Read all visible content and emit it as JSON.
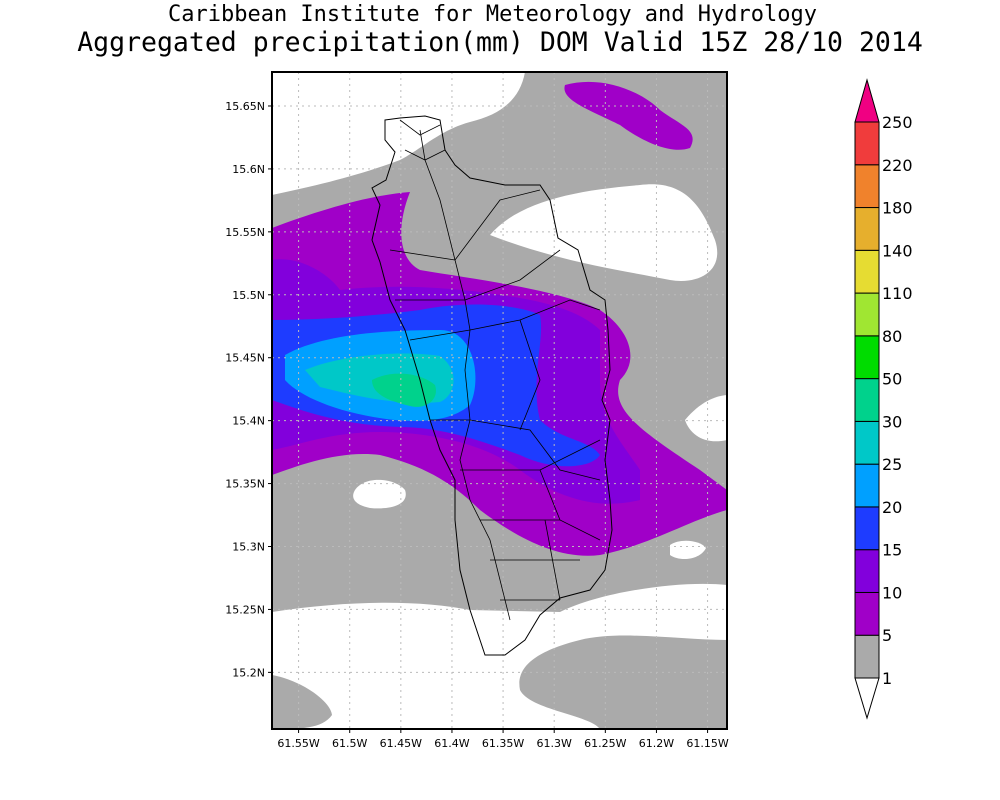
{
  "header": {
    "title": "Caribbean Institute for Meteorology and Hydrology",
    "subtitle": "Aggregated precipitation(mm) DOM Valid 15Z 28/10 2014"
  },
  "map": {
    "region": "Dominica",
    "lat_ticks": [
      "15.65N",
      "15.6N",
      "15.55N",
      "15.5N",
      "15.45N",
      "15.4N",
      "15.35N",
      "15.3N",
      "15.25N",
      "15.2N"
    ],
    "lat_values": [
      15.65,
      15.6,
      15.55,
      15.5,
      15.45,
      15.4,
      15.35,
      15.3,
      15.25,
      15.2
    ],
    "lon_ticks": [
      "61.55W",
      "61.5W",
      "61.45W",
      "61.4W",
      "61.35W",
      "61.3W",
      "61.25W",
      "61.2W",
      "61.15W"
    ],
    "lon_values": [
      -61.55,
      -61.5,
      -61.45,
      -61.4,
      -61.35,
      -61.3,
      -61.25,
      -61.2,
      -61.15
    ],
    "lat_range": [
      15.155,
      15.677
    ],
    "lon_range": [
      -61.576,
      -61.131
    ],
    "colors": {
      "below1": "#ffffff",
      "c1_5": "#aaaaaa",
      "c5_10": "#a000c8",
      "c10_15": "#8200dc",
      "c15_20": "#1e3cff",
      "c20_25": "#00a0ff",
      "c25_30": "#00c8c8",
      "c30_50": "#00d28c"
    }
  },
  "colorbar": {
    "levels": [
      "1",
      "5",
      "10",
      "15",
      "20",
      "25",
      "30",
      "50",
      "80",
      "110",
      "140",
      "180",
      "220",
      "250"
    ],
    "colors": [
      "#aaaaaa",
      "#a000c8",
      "#8200dc",
      "#1e3cff",
      "#00a0ff",
      "#00c8c8",
      "#00d28c",
      "#00dc00",
      "#a0e632",
      "#e6dc32",
      "#e6af2d",
      "#f0822c",
      "#f03c3c"
    ],
    "under_color": "#ffffff",
    "over_color": "#f00082"
  }
}
